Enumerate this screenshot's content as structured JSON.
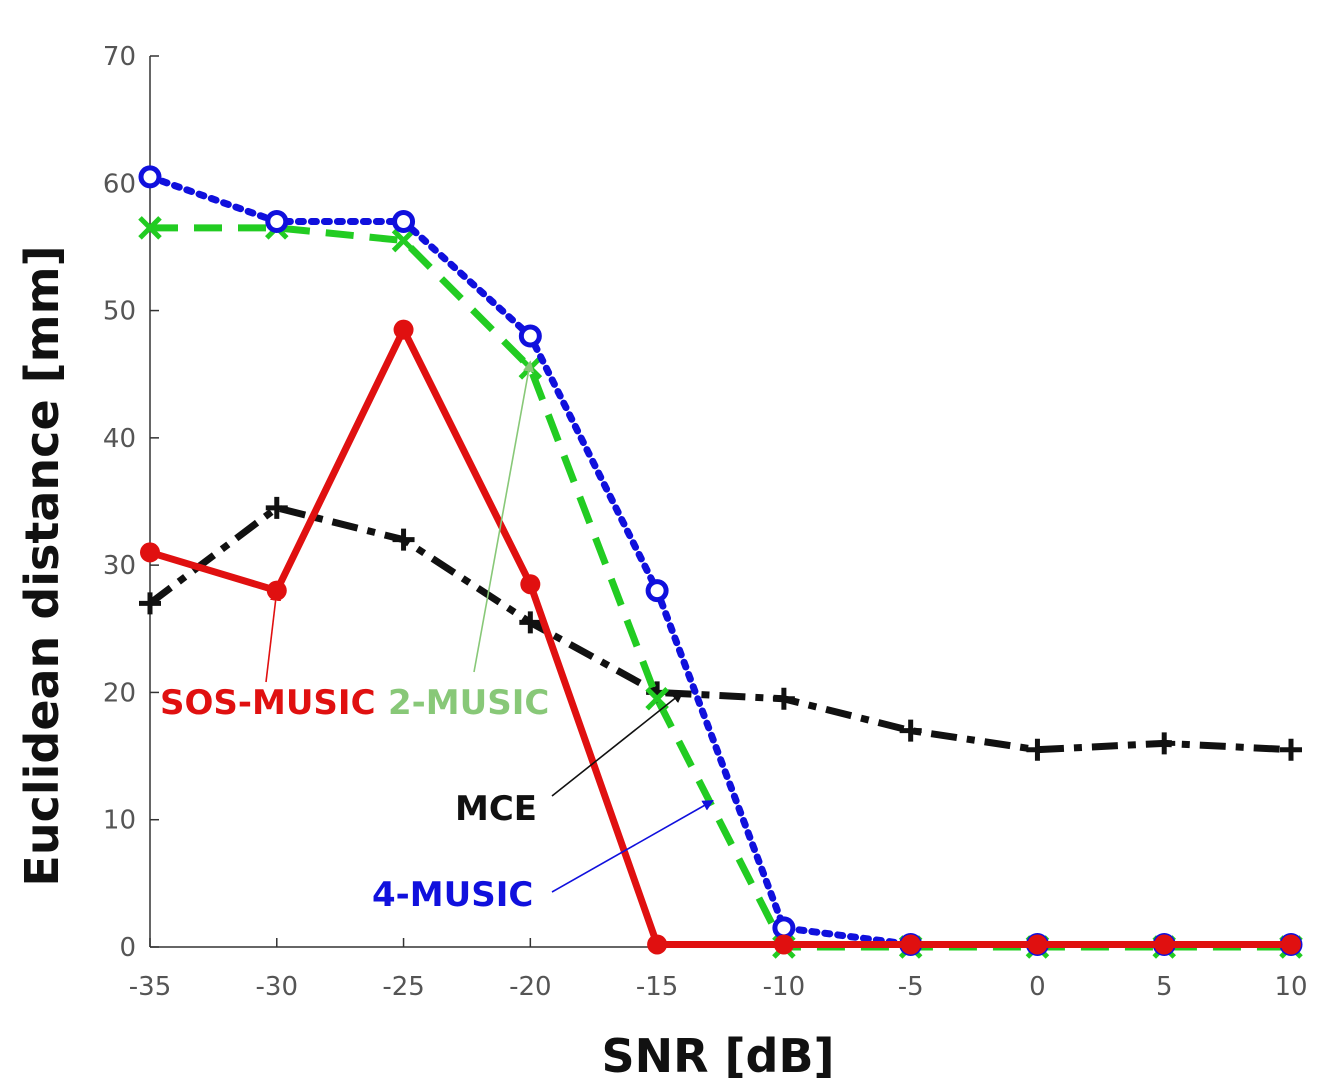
{
  "chart_data": {
    "type": "line",
    "xlabel": "SNR [dB]",
    "ylabel": "Euclidean distance [mm]",
    "xlim": [
      -35,
      10
    ],
    "ylim": [
      0,
      70
    ],
    "x": [
      -35,
      -30,
      -25,
      -20,
      -15,
      -10,
      -5,
      0,
      5,
      10
    ],
    "xticks": [
      "-35",
      "-30",
      "-25",
      "-20",
      "-15",
      "-10",
      "-5",
      "0",
      "5",
      "10"
    ],
    "yticks": [
      "0",
      "10",
      "20",
      "30",
      "40",
      "50",
      "60",
      "70"
    ],
    "grid": false,
    "series": [
      {
        "name": "4-MUSIC",
        "color": "#1010dd",
        "style": "dotted",
        "marker": "circle",
        "values": [
          60.5,
          57,
          57,
          48,
          28,
          1.5,
          0.2,
          0.2,
          0.2,
          0.2
        ]
      },
      {
        "name": "2-MUSIC",
        "color": "#22cc22",
        "style": "dashed",
        "marker": "x",
        "values": [
          56.5,
          56.5,
          55.5,
          45.5,
          19.5,
          0,
          0,
          0,
          0,
          0
        ]
      },
      {
        "name": "SOS-MUSIC",
        "color": "#e01010",
        "style": "solid",
        "marker": "dot",
        "values": [
          31,
          28,
          48.5,
          28.5,
          0.2,
          0.2,
          0.2,
          0.2,
          0.2,
          0.2
        ]
      },
      {
        "name": "MCE",
        "color": "#111111",
        "style": "dashdot",
        "marker": "plus",
        "values": [
          27,
          34.5,
          32,
          25.5,
          20,
          19.5,
          17,
          15.5,
          16,
          15.5
        ]
      }
    ],
    "annotations": [
      {
        "text": "SOS-MUSIC",
        "color": "#e01010",
        "points_to": [
          -30,
          28
        ]
      },
      {
        "text": "2-MUSIC",
        "color": "#88c878",
        "points_to": [
          -20,
          46
        ]
      },
      {
        "text": "MCE",
        "color": "#111111",
        "points_to": [
          -14,
          20
        ]
      },
      {
        "text": "4-MUSIC",
        "color": "#1010dd",
        "points_to": [
          -12.8,
          11.5
        ]
      }
    ]
  }
}
